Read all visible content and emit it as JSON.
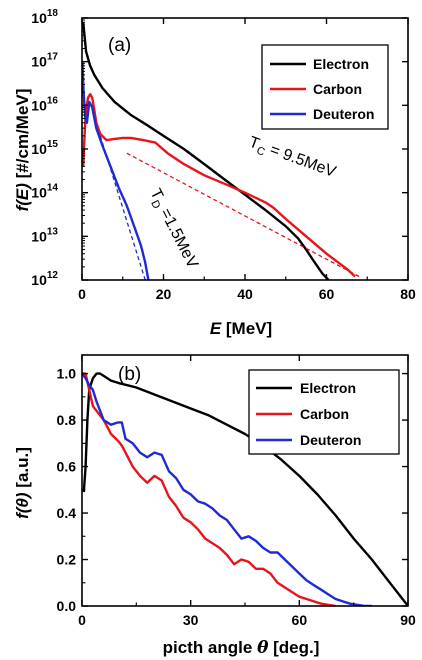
{
  "chart_data": [
    {
      "type": "line",
      "panel_label": "(a)",
      "xlabel": "E [MeV]",
      "ylabel": "f(E) [#/cm/MeV]",
      "y_scale": "log",
      "xlim": [
        0,
        80
      ],
      "ylim": [
        1000000000000.0,
        1e+18
      ],
      "x_ticks": [
        "0",
        "20",
        "40",
        "60",
        "80"
      ],
      "y_ticks": [
        {
          "base": "10",
          "exp": "12"
        },
        {
          "base": "10",
          "exp": "13"
        },
        {
          "base": "10",
          "exp": "14"
        },
        {
          "base": "10",
          "exp": "15"
        },
        {
          "base": "10",
          "exp": "16"
        },
        {
          "base": "10",
          "exp": "17"
        },
        {
          "base": "10",
          "exp": "18"
        }
      ],
      "legend_position": "top-right",
      "series": [
        {
          "name": "Electron",
          "color": "#000000",
          "x": [
            0.3,
            1,
            2,
            3,
            5,
            8,
            12,
            16,
            20,
            25,
            30,
            35,
            40,
            45,
            50,
            53,
            55,
            57,
            59,
            60.5
          ],
          "y": [
            8e+17,
            1.7e+17,
            8e+16,
            5e+16,
            2.5e+16,
            1.2e+16,
            6000000000000000.0,
            3500000000000000.0,
            2000000000000000.0,
            1000000000000000.0,
            450000000000000.0,
            200000000000000.0,
            90000000000000.0,
            40000000000000.0,
            17000000000000.0,
            9000000000000.0,
            5000000000000.0,
            2600000000000.0,
            1400000000000.0,
            1000000000000.0
          ]
        },
        {
          "name": "Carbon",
          "color": "#e8141c",
          "x": [
            0.3,
            0.7,
            1.0,
            1.5,
            2.0,
            2.5,
            3.0,
            3.5,
            4.5,
            6,
            8,
            10,
            12,
            15,
            18,
            21,
            25,
            30,
            35,
            40,
            45,
            47,
            50,
            55,
            60,
            65,
            67
          ],
          "y": [
            400000000000000.0,
            3000000000000000.0,
            8000000000000000.0,
            1.5e+16,
            1.8e+16,
            1.5e+16,
            8000000000000000.0,
            4000000000000000.0,
            2200000000000000.0,
            1600000000000000.0,
            1700000000000000.0,
            1800000000000000.0,
            1800000000000000.0,
            1600000000000000.0,
            1400000000000000.0,
            800000000000000.0,
            450000000000000.0,
            250000000000000.0,
            160000000000000.0,
            100000000000000.0,
            60000000000000.0,
            45000000000000.0,
            25000000000000.0,
            10000000000000.0,
            4000000000000.0,
            1800000000000.0,
            1200000000000.0
          ]
        },
        {
          "name": "Deuteron",
          "color": "#1f2ad6",
          "x": [
            0.1,
            0.4,
            0.8,
            1.2,
            1.8,
            2.5,
            3.5,
            5,
            7,
            9,
            11,
            13,
            14.5,
            15.5,
            16.3
          ],
          "y": [
            1e+17,
            2e+16,
            5000000000000000.0,
            4000000000000000.0,
            1.2e+16,
            9000000000000000.0,
            3000000000000000.0,
            1200000000000000.0,
            400000000000000.0,
            130000000000000.0,
            50000000000000.0,
            15000000000000.0,
            6000000000000.0,
            2500000000000.0,
            1000000000000.0
          ]
        },
        {
          "name": "",
          "color": "#e8141c",
          "dash": true,
          "x": [
            11,
            68
          ],
          "y": [
            800000000000000.0,
            1200000000000.0
          ]
        },
        {
          "name": "",
          "color": "#1f2ad6",
          "dash": true,
          "x": [
            4.5,
            15.5
          ],
          "y": [
            2000000000000000.0,
            1000000000000.0
          ]
        }
      ],
      "annotations": [
        {
          "text": "T",
          "sub": "C",
          "rest": " = 9.5MeV",
          "color": "#000000"
        },
        {
          "text": "T",
          "sub": "D",
          "rest": " =1.5MeV",
          "color": "#000000"
        }
      ]
    },
    {
      "type": "line",
      "panel_label": "(b)",
      "xlabel": "picth angle θ [deg.]",
      "ylabel": "f(θ) [a.u.]",
      "xlim": [
        0,
        90
      ],
      "ylim": [
        0,
        1.08
      ],
      "x_ticks": [
        "0",
        "30",
        "60",
        "90"
      ],
      "y_ticks": [
        "0.0",
        "0.2",
        "0.4",
        "0.6",
        "0.8",
        "1.0"
      ],
      "legend_position": "top-right",
      "series": [
        {
          "name": "Electron",
          "color": "#000000",
          "x": [
            0.5,
            1,
            1.5,
            2,
            3,
            4,
            5,
            6,
            8,
            10,
            15,
            20,
            25,
            30,
            35,
            40,
            45,
            50,
            55,
            60,
            65,
            70,
            75,
            80,
            85,
            90
          ],
          "y": [
            0.49,
            0.6,
            0.8,
            0.93,
            0.98,
            1.0,
            1.0,
            0.99,
            0.97,
            0.96,
            0.94,
            0.91,
            0.88,
            0.85,
            0.82,
            0.78,
            0.74,
            0.69,
            0.63,
            0.56,
            0.48,
            0.39,
            0.29,
            0.2,
            0.1,
            0.0
          ]
        },
        {
          "name": "Carbon",
          "color": "#e8141c",
          "x": [
            0,
            1,
            2,
            3,
            4,
            5,
            6,
            7,
            8,
            10,
            11,
            12,
            14,
            16,
            18,
            20,
            22,
            24,
            26,
            28,
            30,
            32,
            34,
            36,
            38,
            40,
            42,
            44,
            46,
            48,
            50,
            52,
            54,
            56,
            58,
            60,
            62,
            64,
            66,
            68,
            70
          ],
          "y": [
            1.0,
            1.0,
            0.93,
            0.86,
            0.84,
            0.82,
            0.8,
            0.77,
            0.74,
            0.71,
            0.69,
            0.66,
            0.6,
            0.56,
            0.53,
            0.56,
            0.54,
            0.47,
            0.43,
            0.38,
            0.36,
            0.33,
            0.29,
            0.27,
            0.25,
            0.22,
            0.18,
            0.2,
            0.19,
            0.16,
            0.16,
            0.14,
            0.1,
            0.08,
            0.06,
            0.04,
            0.03,
            0.02,
            0.01,
            0.005,
            0.0
          ]
        },
        {
          "name": "Deuteron",
          "color": "#1f2ad6",
          "x": [
            0,
            1,
            2,
            3,
            4,
            5,
            6,
            8,
            10,
            11,
            12,
            13,
            14,
            16,
            18,
            20,
            22,
            24,
            26,
            28,
            30,
            32,
            34,
            36,
            38,
            40,
            42,
            44,
            46,
            48,
            50,
            52,
            54,
            56,
            58,
            60,
            62,
            64,
            66,
            68,
            70,
            72,
            74,
            76,
            78,
            80
          ],
          "y": [
            1.0,
            0.98,
            0.95,
            0.93,
            0.88,
            0.84,
            0.8,
            0.78,
            0.79,
            0.79,
            0.72,
            0.71,
            0.7,
            0.66,
            0.64,
            0.66,
            0.65,
            0.58,
            0.55,
            0.5,
            0.48,
            0.45,
            0.44,
            0.42,
            0.39,
            0.37,
            0.33,
            0.29,
            0.3,
            0.28,
            0.25,
            0.23,
            0.23,
            0.2,
            0.17,
            0.14,
            0.11,
            0.09,
            0.07,
            0.05,
            0.03,
            0.02,
            0.01,
            0.005,
            0.0,
            0.0
          ]
        }
      ]
    }
  ]
}
